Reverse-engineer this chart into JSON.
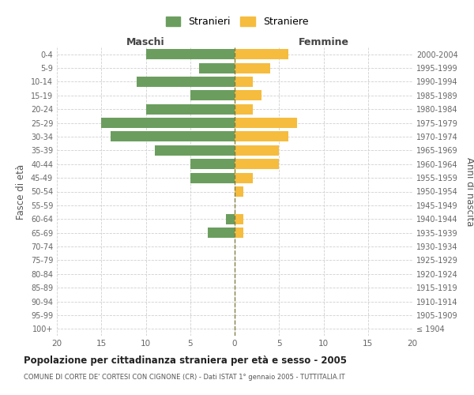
{
  "age_groups": [
    "100+",
    "95-99",
    "90-94",
    "85-89",
    "80-84",
    "75-79",
    "70-74",
    "65-69",
    "60-64",
    "55-59",
    "50-54",
    "45-49",
    "40-44",
    "35-39",
    "30-34",
    "25-29",
    "20-24",
    "15-19",
    "10-14",
    "5-9",
    "0-4"
  ],
  "birth_years": [
    "≤ 1904",
    "1905-1909",
    "1910-1914",
    "1915-1919",
    "1920-1924",
    "1925-1929",
    "1930-1934",
    "1935-1939",
    "1940-1944",
    "1945-1949",
    "1950-1954",
    "1955-1959",
    "1960-1964",
    "1965-1969",
    "1970-1974",
    "1975-1979",
    "1980-1984",
    "1985-1989",
    "1990-1994",
    "1995-1999",
    "2000-2004"
  ],
  "males": [
    0,
    0,
    0,
    0,
    0,
    0,
    0,
    3,
    1,
    0,
    0,
    5,
    5,
    9,
    14,
    15,
    10,
    5,
    11,
    4,
    10
  ],
  "females": [
    0,
    0,
    0,
    0,
    0,
    0,
    0,
    1,
    1,
    0,
    1,
    2,
    5,
    5,
    6,
    7,
    2,
    3,
    2,
    4,
    6
  ],
  "color_males": "#6b9e5e",
  "color_females": "#f5bc3e",
  "color_zero_line": "#808040",
  "title": "Popolazione per cittadinanza straniera per età e sesso - 2005",
  "subtitle": "COMUNE DI CORTE DE' CORTESI CON CIGNONE (CR) - Dati ISTAT 1° gennaio 2005 - TUTTITALIA.IT",
  "xlabel_left": "Maschi",
  "xlabel_right": "Femmine",
  "ylabel_left": "Fasce di età",
  "ylabel_right": "Anni di nascita",
  "legend_males": "Stranieri",
  "legend_females": "Straniere",
  "xlim": 20,
  "background_color": "#ffffff",
  "grid_color": "#d0d0d0"
}
